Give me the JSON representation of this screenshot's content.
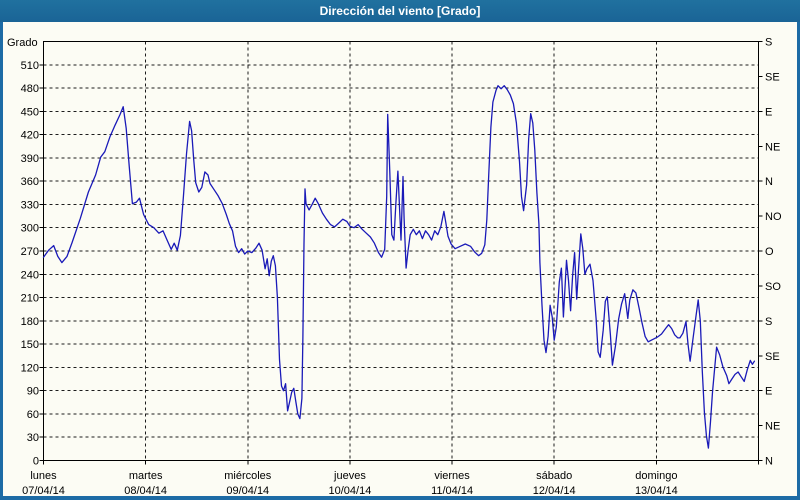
{
  "window": {
    "title": "Dirección del viento [Grado]"
  },
  "colors": {
    "titlebar_bg": "#1a6496",
    "frame": "#1d6ba5",
    "plot_bg": "#fcfcf4",
    "line": "#1a1ab8",
    "grid": "#1c1c1c",
    "text": "#000000"
  },
  "y_axis": {
    "label": "Grado",
    "ticks": [
      "510",
      "480",
      "450",
      "420",
      "390",
      "360",
      "330",
      "300",
      "270",
      "240",
      "210",
      "180",
      "150",
      "120",
      "90",
      "60",
      "30",
      "0"
    ]
  },
  "right_axis": {
    "ticks": [
      "S",
      "SE",
      "E",
      "NE",
      "N",
      "NO",
      "O",
      "SO",
      "S",
      "SE",
      "E",
      "NE",
      "N"
    ]
  },
  "x_axis": {
    "days": [
      {
        "name": "lunes",
        "date": "07/04/14"
      },
      {
        "name": "martes",
        "date": "08/04/14"
      },
      {
        "name": "miércoles",
        "date": "09/04/14"
      },
      {
        "name": "jueves",
        "date": "10/04/14"
      },
      {
        "name": "viernes",
        "date": "11/04/14"
      },
      {
        "name": "sábado",
        "date": "12/04/14"
      },
      {
        "name": "domingo",
        "date": "13/04/14"
      }
    ]
  },
  "chart_data": {
    "type": "line",
    "title": "Dirección del viento [Grado]",
    "ylabel": "Grado",
    "ylim": [
      0,
      540
    ],
    "y_tick_step_left": 30,
    "y_tick_step_right": 45,
    "xlim_days": [
      0,
      7
    ],
    "x_categories": [
      "lunes 07/04/14",
      "martes 08/04/14",
      "miércoles 09/04/14",
      "jueves 10/04/14",
      "viernes 11/04/14",
      "sábado 12/04/14",
      "domingo 13/04/14"
    ],
    "grid": true,
    "legend": "none",
    "series": [
      {
        "name": "Dirección del viento [Grado]",
        "color": "#1a1ab8",
        "points": [
          [
            0.0,
            262
          ],
          [
            0.05,
            271
          ],
          [
            0.1,
            277
          ],
          [
            0.14,
            263
          ],
          [
            0.18,
            255
          ],
          [
            0.23,
            263
          ],
          [
            0.28,
            281
          ],
          [
            0.36,
            312
          ],
          [
            0.44,
            346
          ],
          [
            0.51,
            368
          ],
          [
            0.56,
            391
          ],
          [
            0.6,
            398
          ],
          [
            0.65,
            417
          ],
          [
            0.7,
            432
          ],
          [
            0.75,
            446
          ],
          [
            0.78,
            456
          ],
          [
            0.81,
            428
          ],
          [
            0.84,
            378
          ],
          [
            0.87,
            331
          ],
          [
            0.91,
            333
          ],
          [
            0.94,
            338
          ],
          [
            0.98,
            317
          ],
          [
            1.03,
            304
          ],
          [
            1.08,
            300
          ],
          [
            1.13,
            293
          ],
          [
            1.17,
            296
          ],
          [
            1.21,
            284
          ],
          [
            1.25,
            272
          ],
          [
            1.28,
            280
          ],
          [
            1.31,
            271
          ],
          [
            1.34,
            290
          ],
          [
            1.37,
            340
          ],
          [
            1.4,
            395
          ],
          [
            1.43,
            437
          ],
          [
            1.45,
            425
          ],
          [
            1.47,
            388
          ],
          [
            1.49,
            358
          ],
          [
            1.52,
            346
          ],
          [
            1.55,
            352
          ],
          [
            1.58,
            372
          ],
          [
            1.61,
            368
          ],
          [
            1.63,
            357
          ],
          [
            1.67,
            349
          ],
          [
            1.71,
            341
          ],
          [
            1.75,
            331
          ],
          [
            1.79,
            317
          ],
          [
            1.82,
            305
          ],
          [
            1.85,
            296
          ],
          [
            1.88,
            276
          ],
          [
            1.91,
            268
          ],
          [
            1.94,
            273
          ],
          [
            1.97,
            266
          ],
          [
            2.0,
            270
          ],
          [
            2.04,
            268
          ],
          [
            2.08,
            274
          ],
          [
            2.11,
            280
          ],
          [
            2.14,
            271
          ],
          [
            2.17,
            247
          ],
          [
            2.19,
            260
          ],
          [
            2.21,
            238
          ],
          [
            2.23,
            257
          ],
          [
            2.25,
            264
          ],
          [
            2.27,
            251
          ],
          [
            2.29,
            210
          ],
          [
            2.31,
            130
          ],
          [
            2.33,
            96
          ],
          [
            2.35,
            90
          ],
          [
            2.37,
            99
          ],
          [
            2.39,
            64
          ],
          [
            2.41,
            76
          ],
          [
            2.43,
            88
          ],
          [
            2.45,
            93
          ],
          [
            2.47,
            76
          ],
          [
            2.49,
            60
          ],
          [
            2.51,
            54
          ],
          [
            2.53,
            80
          ],
          [
            2.54,
            160
          ],
          [
            2.55,
            280
          ],
          [
            2.56,
            350
          ],
          [
            2.57,
            331
          ],
          [
            2.6,
            323
          ],
          [
            2.63,
            330
          ],
          [
            2.66,
            338
          ],
          [
            2.69,
            331
          ],
          [
            2.73,
            319
          ],
          [
            2.77,
            311
          ],
          [
            2.81,
            304
          ],
          [
            2.85,
            301
          ],
          [
            2.89,
            306
          ],
          [
            2.93,
            311
          ],
          [
            2.97,
            308
          ],
          [
            3.0,
            302
          ],
          [
            3.04,
            300
          ],
          [
            3.08,
            304
          ],
          [
            3.12,
            298
          ],
          [
            3.16,
            293
          ],
          [
            3.2,
            288
          ],
          [
            3.24,
            280
          ],
          [
            3.28,
            268
          ],
          [
            3.31,
            262
          ],
          [
            3.34,
            272
          ],
          [
            3.36,
            340
          ],
          [
            3.37,
            446
          ],
          [
            3.39,
            372
          ],
          [
            3.41,
            291
          ],
          [
            3.43,
            284
          ],
          [
            3.45,
            332
          ],
          [
            3.47,
            373
          ],
          [
            3.49,
            312
          ],
          [
            3.5,
            284
          ],
          [
            3.52,
            366
          ],
          [
            3.53,
            312
          ],
          [
            3.55,
            248
          ],
          [
            3.57,
            271
          ],
          [
            3.59,
            291
          ],
          [
            3.62,
            298
          ],
          [
            3.65,
            291
          ],
          [
            3.68,
            296
          ],
          [
            3.71,
            286
          ],
          [
            3.74,
            296
          ],
          [
            3.77,
            291
          ],
          [
            3.8,
            284
          ],
          [
            3.83,
            296
          ],
          [
            3.86,
            291
          ],
          [
            3.89,
            301
          ],
          [
            3.92,
            321
          ],
          [
            3.94,
            306
          ],
          [
            3.96,
            289
          ],
          [
            3.99,
            279
          ],
          [
            4.03,
            273
          ],
          [
            4.08,
            276
          ],
          [
            4.13,
            279
          ],
          [
            4.18,
            276
          ],
          [
            4.22,
            269
          ],
          [
            4.26,
            264
          ],
          [
            4.29,
            267
          ],
          [
            4.32,
            278
          ],
          [
            4.34,
            310
          ],
          [
            4.36,
            370
          ],
          [
            4.38,
            430
          ],
          [
            4.4,
            462
          ],
          [
            4.43,
            477
          ],
          [
            4.45,
            483
          ],
          [
            4.48,
            479
          ],
          [
            4.51,
            483
          ],
          [
            4.54,
            478
          ],
          [
            4.57,
            471
          ],
          [
            4.6,
            460
          ],
          [
            4.63,
            435
          ],
          [
            4.66,
            385
          ],
          [
            4.68,
            340
          ],
          [
            4.7,
            322
          ],
          [
            4.73,
            355
          ],
          [
            4.75,
            415
          ],
          [
            4.77,
            447
          ],
          [
            4.79,
            435
          ],
          [
            4.81,
            400
          ],
          [
            4.83,
            345
          ],
          [
            4.85,
            305
          ],
          [
            4.86,
            255
          ],
          [
            4.88,
            200
          ],
          [
            4.9,
            155
          ],
          [
            4.92,
            139
          ],
          [
            4.94,
            160
          ],
          [
            4.96,
            200
          ],
          [
            4.98,
            185
          ],
          [
            5.0,
            155
          ],
          [
            5.02,
            172
          ],
          [
            5.05,
            230
          ],
          [
            5.07,
            248
          ],
          [
            5.09,
            185
          ],
          [
            5.12,
            258
          ],
          [
            5.14,
            232
          ],
          [
            5.16,
            193
          ],
          [
            5.18,
            238
          ],
          [
            5.2,
            268
          ],
          [
            5.22,
            208
          ],
          [
            5.24,
            250
          ],
          [
            5.26,
            292
          ],
          [
            5.28,
            273
          ],
          [
            5.3,
            240
          ],
          [
            5.32,
            247
          ],
          [
            5.35,
            253
          ],
          [
            5.38,
            232
          ],
          [
            5.41,
            183
          ],
          [
            5.43,
            140
          ],
          [
            5.45,
            133
          ],
          [
            5.48,
            168
          ],
          [
            5.5,
            205
          ],
          [
            5.52,
            211
          ],
          [
            5.55,
            162
          ],
          [
            5.57,
            123
          ],
          [
            5.6,
            148
          ],
          [
            5.63,
            182
          ],
          [
            5.66,
            202
          ],
          [
            5.69,
            215
          ],
          [
            5.72,
            183
          ],
          [
            5.74,
            207
          ],
          [
            5.77,
            220
          ],
          [
            5.8,
            216
          ],
          [
            5.83,
            197
          ],
          [
            5.86,
            177
          ],
          [
            5.89,
            160
          ],
          [
            5.92,
            153
          ],
          [
            5.95,
            155
          ],
          [
            5.98,
            157
          ],
          [
            6.01,
            159
          ],
          [
            6.05,
            163
          ],
          [
            6.09,
            170
          ],
          [
            6.12,
            175
          ],
          [
            6.15,
            170
          ],
          [
            6.18,
            162
          ],
          [
            6.21,
            158
          ],
          [
            6.23,
            158
          ],
          [
            6.26,
            164
          ],
          [
            6.29,
            179
          ],
          [
            6.31,
            150
          ],
          [
            6.33,
            128
          ],
          [
            6.36,
            158
          ],
          [
            6.39,
            188
          ],
          [
            6.41,
            207
          ],
          [
            6.43,
            180
          ],
          [
            6.45,
            115
          ],
          [
            6.47,
            62
          ],
          [
            6.49,
            32
          ],
          [
            6.51,
            16
          ],
          [
            6.53,
            50
          ],
          [
            6.55,
            88
          ],
          [
            6.57,
            118
          ],
          [
            6.59,
            146
          ],
          [
            6.62,
            136
          ],
          [
            6.65,
            121
          ],
          [
            6.69,
            109
          ],
          [
            6.71,
            99
          ],
          [
            6.74,
            105
          ],
          [
            6.77,
            111
          ],
          [
            6.8,
            114
          ],
          [
            6.83,
            108
          ],
          [
            6.86,
            102
          ],
          [
            6.89,
            117
          ],
          [
            6.92,
            129
          ],
          [
            6.94,
            124
          ],
          [
            6.96,
            128
          ]
        ]
      }
    ]
  }
}
